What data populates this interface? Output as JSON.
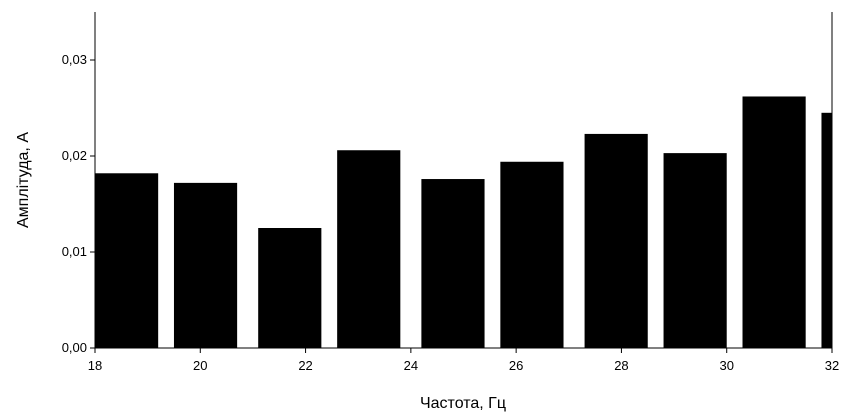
{
  "chart_data": {
    "type": "bar",
    "title": "",
    "xlabel": "Частота, Гц",
    "ylabel": "Амплітуда, А",
    "xlim": [
      18,
      32
    ],
    "ylim": [
      0.0,
      0.035
    ],
    "x_ticks": [
      18,
      20,
      22,
      24,
      26,
      28,
      30,
      32
    ],
    "x_tick_labels": [
      "18",
      "20",
      "22",
      "24",
      "26",
      "28",
      "30",
      "32"
    ],
    "y_ticks": [
      0.0,
      0.01,
      0.02,
      0.03
    ],
    "y_tick_labels": [
      "0,00",
      "0,01",
      "0,02",
      "0,03"
    ],
    "bar_width": 1.2,
    "x": [
      18.6,
      20.1,
      21.7,
      23.2,
      24.8,
      26.3,
      27.9,
      29.4,
      30.9,
      32.4
    ],
    "values": [
      0.0182,
      0.0172,
      0.0125,
      0.0206,
      0.0176,
      0.0194,
      0.0223,
      0.0203,
      0.0262,
      0.0245
    ],
    "bar_color": "#000000",
    "grid": false,
    "legend": "none"
  }
}
